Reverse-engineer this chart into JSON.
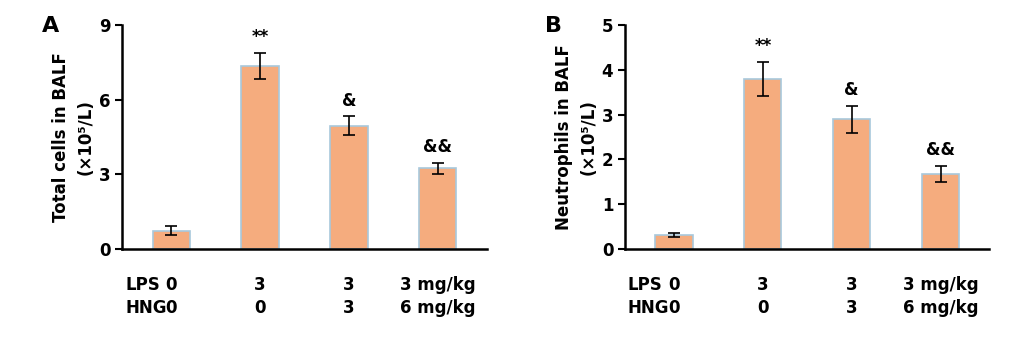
{
  "panel_A": {
    "label": "A",
    "ylabel_main": "Total cells in BALF",
    "ylabel_sub": "(×10⁵/L)",
    "values": [
      0.75,
      7.35,
      4.95,
      3.25
    ],
    "errors": [
      0.18,
      0.52,
      0.38,
      0.22
    ],
    "ylim": [
      0,
      9
    ],
    "yticks": [
      0,
      3,
      6,
      9
    ],
    "annotations": [
      "",
      "**",
      "&",
      "&&"
    ],
    "lps_labels": [
      "0",
      "3",
      "3",
      "3 mg/kg"
    ],
    "hng_labels": [
      "0",
      "0",
      "3",
      "6 mg/kg"
    ]
  },
  "panel_B": {
    "label": "B",
    "ylabel_main": "Neutrophils in BALF",
    "ylabel_sub": "(×10⁵/L)",
    "values": [
      0.32,
      3.8,
      2.9,
      1.68
    ],
    "errors": [
      0.05,
      0.38,
      0.3,
      0.18
    ],
    "ylim": [
      0,
      5
    ],
    "yticks": [
      0,
      1,
      2,
      3,
      4,
      5
    ],
    "annotations": [
      "",
      "**",
      "&",
      "&&"
    ],
    "lps_labels": [
      "0",
      "3",
      "3",
      "3 mg/kg"
    ],
    "hng_labels": [
      "0",
      "0",
      "3",
      "6 mg/kg"
    ]
  },
  "bar_color": "#F5AC7E",
  "bar_edge_color": "#A8C8DC",
  "bar_width": 0.42,
  "x_positions": [
    0,
    1,
    2,
    3
  ],
  "annotation_fontsize": 12,
  "label_fontsize": 12,
  "ylabel_fontsize": 12,
  "tick_fontsize": 12,
  "panel_label_fontsize": 16,
  "xlabel_row1": "LPS",
  "xlabel_row2": "HNG",
  "background_color": "#ffffff"
}
